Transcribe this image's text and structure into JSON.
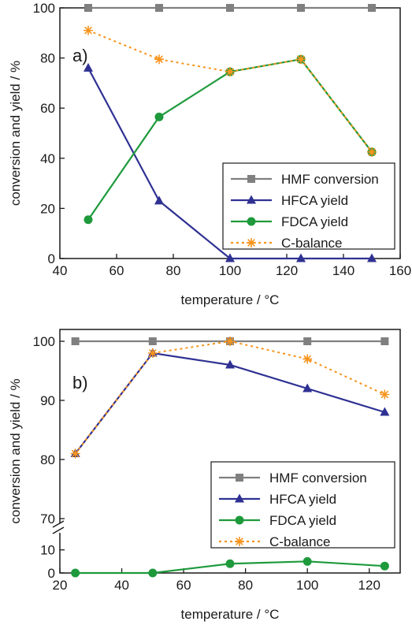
{
  "chart_data": [
    {
      "type": "line",
      "panel_label": "a)",
      "xlabel": "temperature / °C",
      "ylabel": "conversion and yield / %",
      "xlim": [
        40,
        160
      ],
      "ylim": [
        0,
        100
      ],
      "xticks": [
        40,
        60,
        80,
        100,
        120,
        140,
        160
      ],
      "yticks": [
        0,
        20,
        40,
        60,
        80,
        100
      ],
      "legend_position": "lower-right",
      "series": [
        {
          "name": "HMF conversion",
          "color": "#808080",
          "marker": "square",
          "dash": "solid",
          "x": [
            50,
            75,
            100,
            125,
            150
          ],
          "y": [
            100,
            100,
            100,
            100,
            100
          ]
        },
        {
          "name": "HFCA yield",
          "color": "#2e3192",
          "marker": "triangle",
          "dash": "solid",
          "x": [
            50,
            75,
            100,
            125,
            150
          ],
          "y": [
            76,
            23,
            0,
            0,
            0
          ]
        },
        {
          "name": "FDCA yield",
          "color": "#1e9a3c",
          "marker": "circle",
          "dash": "solid",
          "x": [
            50,
            75,
            100,
            125,
            150
          ],
          "y": [
            15.5,
            56.5,
            74.5,
            79.5,
            42.5
          ]
        },
        {
          "name": "C-balance",
          "color": "#f7941d",
          "marker": "asterisk",
          "dash": "dotted",
          "x": [
            50,
            75,
            100,
            125,
            150
          ],
          "y": [
            91,
            79.5,
            74.5,
            79.5,
            42.5
          ]
        }
      ]
    },
    {
      "type": "line",
      "panel_label": "b)",
      "xlabel": "temperature / °C",
      "ylabel": "conversion and yield / %",
      "xlim": [
        20,
        130
      ],
      "ylim": [
        0,
        102
      ],
      "axis_break": {
        "lower_range": [
          0,
          15
        ],
        "upper_range": [
          70,
          102
        ]
      },
      "xticks": [
        20,
        40,
        60,
        80,
        100,
        120
      ],
      "yticks": [
        0,
        10,
        70,
        80,
        90,
        100
      ],
      "legend_position": "lower-right",
      "series": [
        {
          "name": "HMF conversion",
          "color": "#808080",
          "marker": "square",
          "dash": "solid",
          "x": [
            25,
            50,
            75,
            100,
            125
          ],
          "y": [
            100,
            100,
            100,
            100,
            100
          ]
        },
        {
          "name": "HFCA yield",
          "color": "#2e3192",
          "marker": "triangle",
          "dash": "solid",
          "x": [
            25,
            50,
            75,
            100,
            125
          ],
          "y": [
            81,
            98,
            96,
            92,
            88
          ]
        },
        {
          "name": "FDCA yield",
          "color": "#1e9a3c",
          "marker": "circle",
          "dash": "solid",
          "x": [
            25,
            50,
            75,
            100,
            125
          ],
          "y": [
            0,
            0,
            4,
            5,
            3
          ]
        },
        {
          "name": "C-balance",
          "color": "#f7941d",
          "marker": "asterisk",
          "dash": "dotted",
          "x": [
            25,
            50,
            75,
            100,
            125
          ],
          "y": [
            81,
            98,
            100,
            97,
            91
          ]
        }
      ]
    }
  ]
}
